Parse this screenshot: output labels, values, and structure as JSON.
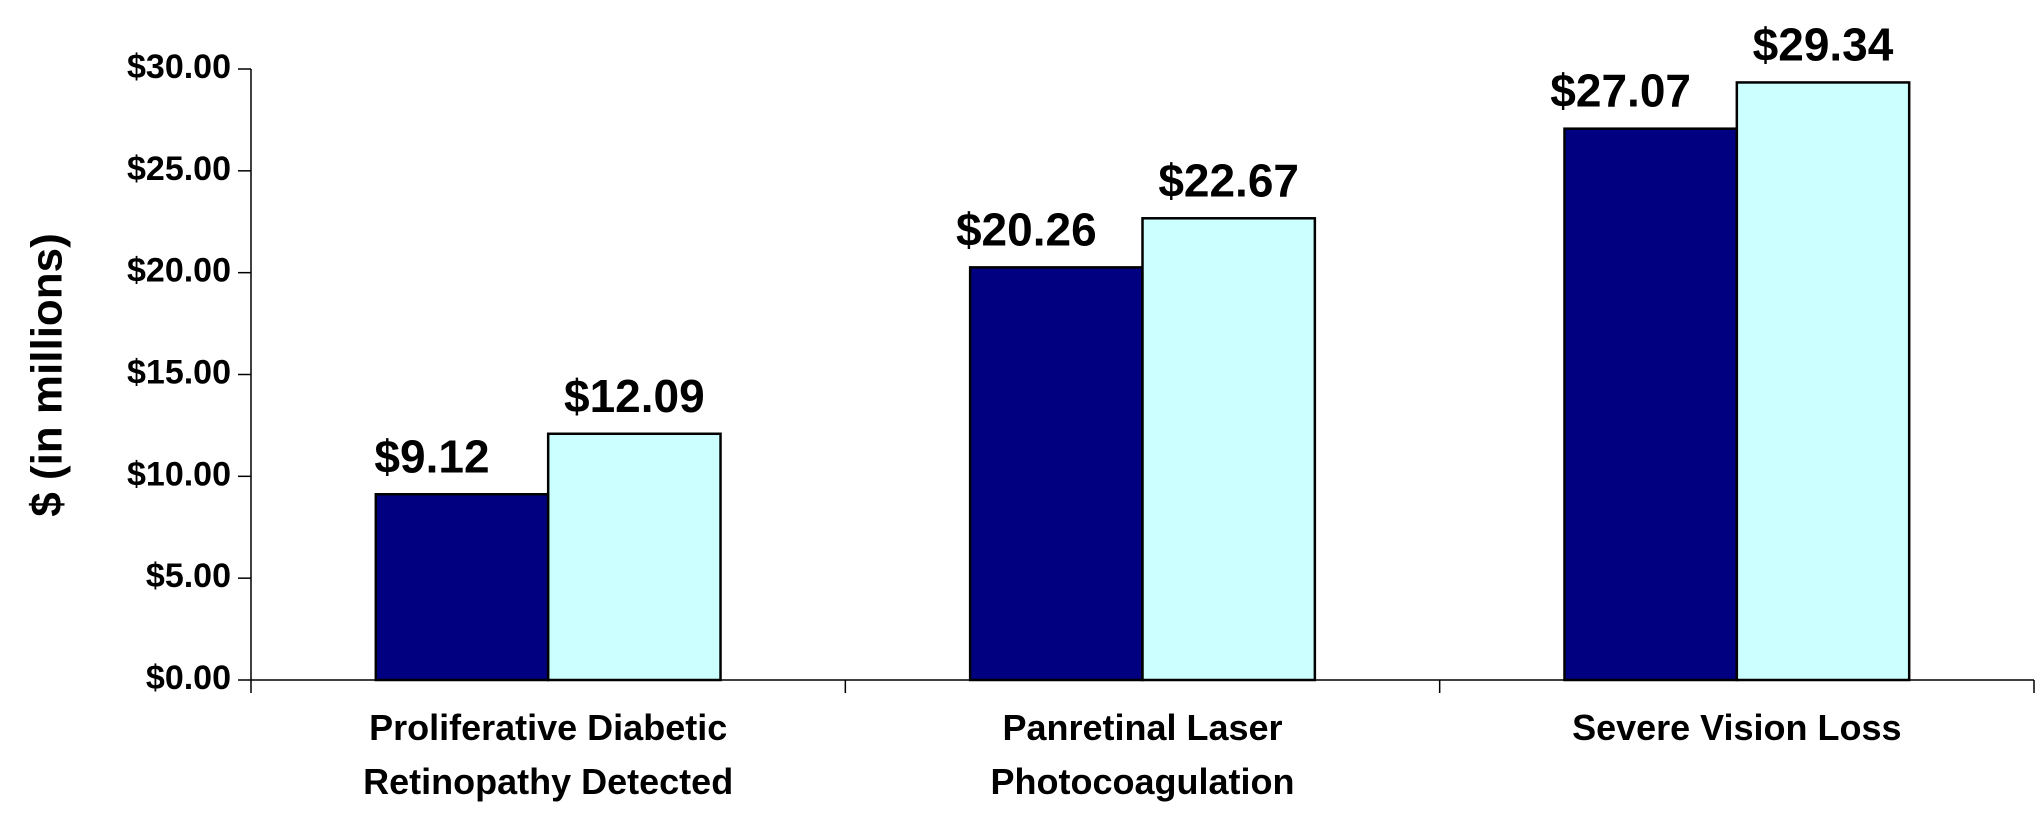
{
  "chart_data": {
    "type": "bar",
    "y_label": "$ (in millions)",
    "categories": [
      [
        "Proliferative Diabetic",
        "Retinopathy Detected"
      ],
      [
        "Panretinal Laser",
        "Photocoagulation"
      ],
      [
        "Severe Vision Loss"
      ]
    ],
    "series": [
      {
        "color": "#000080",
        "values": [
          9.12,
          20.26,
          27.07
        ],
        "value_labels": [
          "$9.12",
          "$20.26",
          "$27.07"
        ]
      },
      {
        "color": "#ccffff",
        "values": [
          12.09,
          22.67,
          29.34
        ],
        "value_labels": [
          "$12.09",
          "$22.67",
          "$29.34"
        ]
      }
    ],
    "ylim": [
      0,
      30
    ],
    "yticks": [
      {
        "value": 0,
        "label": "$0.00"
      },
      {
        "value": 5,
        "label": "$5.00"
      },
      {
        "value": 10,
        "label": "$10.00"
      },
      {
        "value": 15,
        "label": "$15.00"
      },
      {
        "value": 20,
        "label": "$20.00"
      },
      {
        "value": 25,
        "label": "$25.00"
      },
      {
        "value": 30,
        "label": "$30.00"
      }
    ],
    "grid": false
  }
}
